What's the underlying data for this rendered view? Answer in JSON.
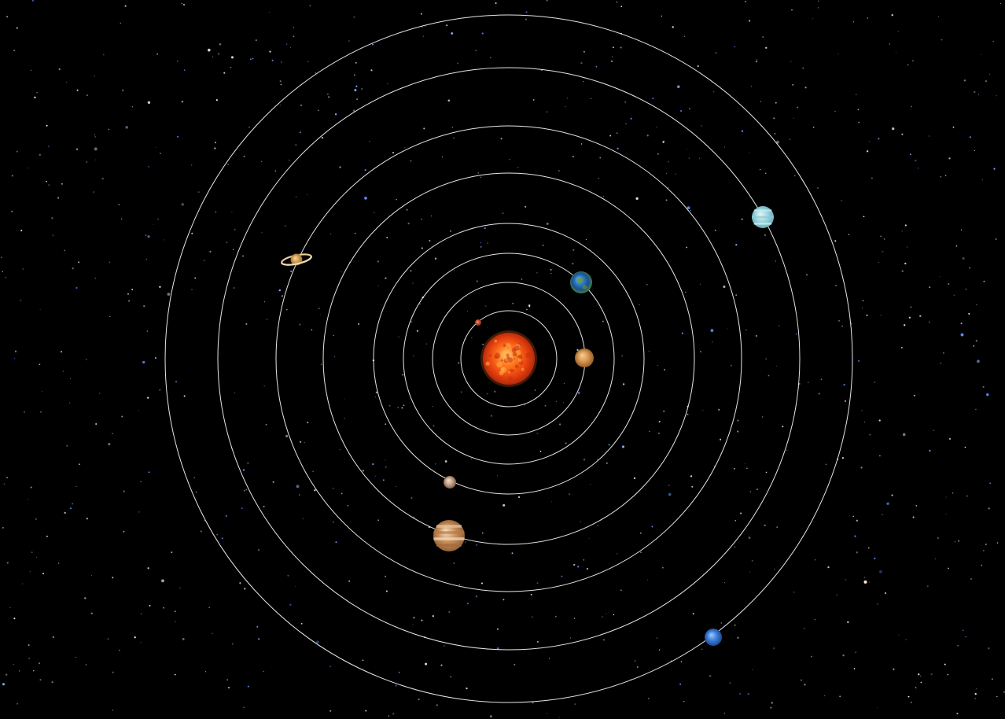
{
  "scene": {
    "background_color": "#000000",
    "orbit_color": "#ffffff",
    "star_colors": [
      "#ffffff",
      "#cfe4ff",
      "#8fb6ff",
      "#5f8fff",
      "#ffe9c4"
    ]
  },
  "sun": {
    "name": "sun",
    "colors": [
      "#ffd27a",
      "#ff7a1f",
      "#e8430f",
      "#a3200a"
    ]
  },
  "planets": [
    {
      "name": "mercury",
      "orbit": 1,
      "colors": [
        "#e0a07a",
        "#c8552f",
        "#7a2a14"
      ]
    },
    {
      "name": "venus",
      "orbit": 2,
      "colors": [
        "#f2d2a0",
        "#d9964e",
        "#8a5527"
      ]
    },
    {
      "name": "earth",
      "orbit": 3,
      "colors": [
        "#9fd4ff",
        "#2f7fd1",
        "#1d4f8c",
        "#4c8a3c"
      ]
    },
    {
      "name": "mars",
      "orbit": 4,
      "colors": [
        "#f3e1cc",
        "#c9a487",
        "#6c5140"
      ]
    },
    {
      "name": "jupiter",
      "orbit": 5,
      "colors": [
        "#f4e2c2",
        "#c98f5a",
        "#8a5b34"
      ]
    },
    {
      "name": "saturn",
      "orbit": 6,
      "colors": [
        "#f6dca0",
        "#d39f54",
        "#8e6530"
      ]
    },
    {
      "name": "uranus",
      "orbit": 7,
      "colors": [
        "#e6f6f7",
        "#9fd7df",
        "#5fa8b6"
      ]
    },
    {
      "name": "neptune",
      "orbit": 8,
      "colors": [
        "#a4ccff",
        "#3b7fd8",
        "#1b3f8a"
      ]
    }
  ]
}
